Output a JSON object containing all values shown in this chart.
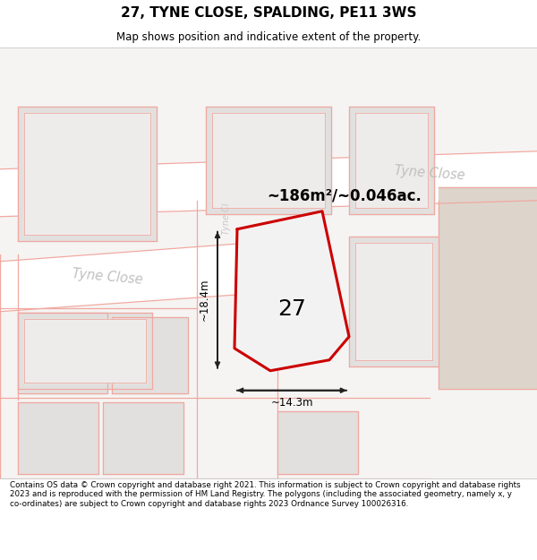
{
  "title": "27, TYNE CLOSE, SPALDING, PE11 3WS",
  "subtitle": "Map shows position and indicative extent of the property.",
  "footer": "Contains OS data © Crown copyright and database right 2021. This information is subject to Crown copyright and database rights 2023 and is reproduced with the permission of HM Land Registry. The polygons (including the associated geometry, namely x, y co-ordinates) are subject to Crown copyright and database rights 2023 Ordnance Survey 100026316.",
  "area_label": "~186m²/~0.046ac.",
  "width_label": "~14.3m",
  "height_label": "~18.4m",
  "plot_number": "27",
  "map_bg": "#f5f4f2",
  "road_fill": "#ffffff",
  "building_fill": "#e2e0de",
  "building_fill2": "#eeeceb",
  "road_line_color": "#f0a8a0",
  "plot_fill": "#f0f0f0",
  "plot_stroke": "#cc0000",
  "dim_line_color": "#222222",
  "road_label_color": "#bbbbbb",
  "beige_fill": "#ddd5cc"
}
